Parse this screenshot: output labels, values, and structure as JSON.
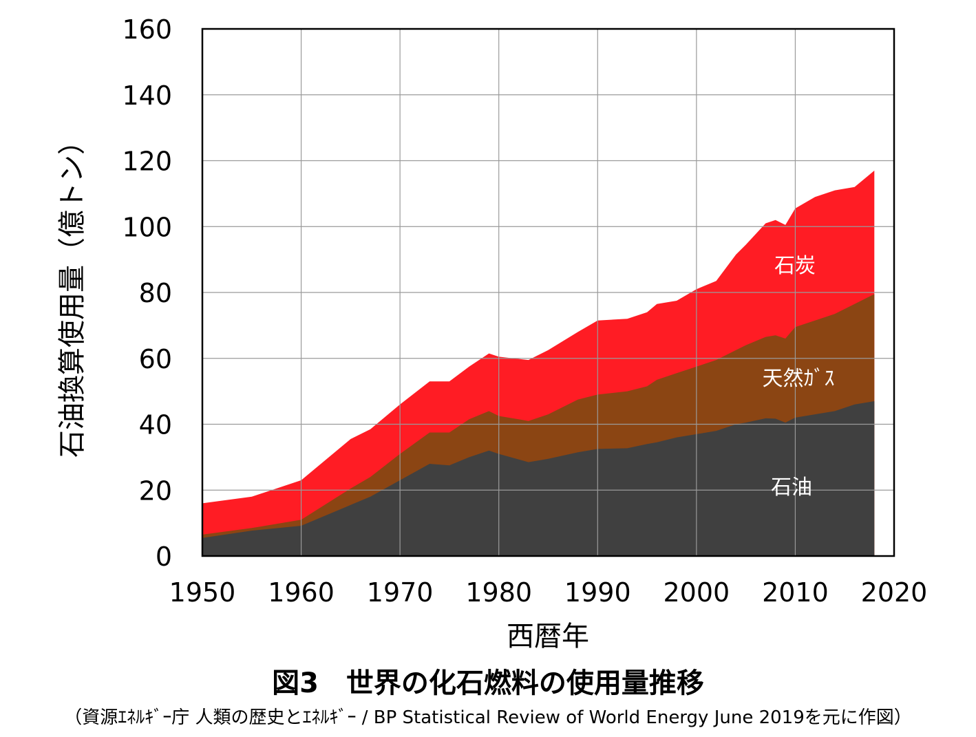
{
  "chart_data": {
    "type": "area",
    "stacked": true,
    "title": "",
    "xlabel": "西暦年",
    "ylabel": "石油換算使用量（億トン）",
    "xlim": [
      1950,
      2020
    ],
    "ylim": [
      0,
      160
    ],
    "x_ticks": [
      1950,
      1960,
      1970,
      1980,
      1990,
      2000,
      2010,
      2020
    ],
    "y_ticks": [
      0,
      20,
      40,
      60,
      80,
      100,
      120,
      140,
      160
    ],
    "grid": true,
    "legend": "none",
    "x": [
      1950,
      1955,
      1960,
      1965,
      1967,
      1970,
      1973,
      1975,
      1977,
      1979,
      1980,
      1983,
      1985,
      1988,
      1990,
      1993,
      1995,
      1996,
      1998,
      2000,
      2002,
      2004,
      2005,
      2007,
      2008,
      2009,
      2010,
      2012,
      2014,
      2016,
      2018
    ],
    "series": [
      {
        "name": "石油",
        "color": "#404040",
        "cumulative": [
          5.5,
          7.7,
          9.2,
          15.5,
          18,
          23,
          28,
          27.5,
          30,
          32,
          31,
          28.5,
          29.5,
          31.5,
          32.5,
          32.7,
          34,
          34.5,
          36,
          37,
          38,
          40,
          40.5,
          41.8,
          41.7,
          40.5,
          42,
          43,
          44,
          46,
          47
        ]
      },
      {
        "name": "天然ｶﾞｽ",
        "color": "#8B4513",
        "cumulative": [
          6.5,
          8.5,
          11,
          20.5,
          24,
          31,
          37.5,
          37.5,
          41.5,
          44,
          42.5,
          41,
          43,
          47.5,
          49,
          50,
          51.5,
          53.5,
          55.5,
          57.5,
          59.5,
          62.5,
          64,
          66.5,
          67,
          66,
          69.5,
          71.5,
          73.5,
          76.5,
          79.5
        ]
      },
      {
        "name": "石炭",
        "color": "#FF1C24",
        "cumulative": [
          16,
          18,
          23,
          35.5,
          38.5,
          46,
          53,
          53,
          57.5,
          61.5,
          60.5,
          59.5,
          62.5,
          68,
          71.5,
          72,
          74,
          76.5,
          77.5,
          81,
          83.5,
          91.5,
          94.5,
          101,
          102,
          100.5,
          105.5,
          109,
          111,
          112,
          117
        ]
      }
    ],
    "annotations": [
      "石炭",
      "天然ｶﾞｽ",
      "石油"
    ]
  },
  "caption": {
    "title": "図3　世界の化石燃料の使用量推移",
    "source": "（資源ｴﾈﾙｷﾞｰ庁  人類の歴史とｴﾈﾙｷﾞｰ / BP Statistical Review of World Energy June 2019を元に作図）"
  }
}
